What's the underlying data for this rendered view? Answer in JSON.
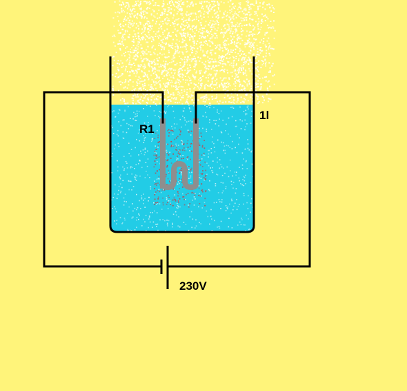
{
  "diagram": {
    "labels": {
      "resistor": "R1",
      "volume": "1l",
      "voltage": "230V"
    },
    "colors": {
      "background": "#FFF47A",
      "water": "#22CCE6",
      "wire": "#000000",
      "heater": "#8E8E8E",
      "heat_dots": "#B84A50",
      "steam": "#FFFFFF"
    }
  }
}
